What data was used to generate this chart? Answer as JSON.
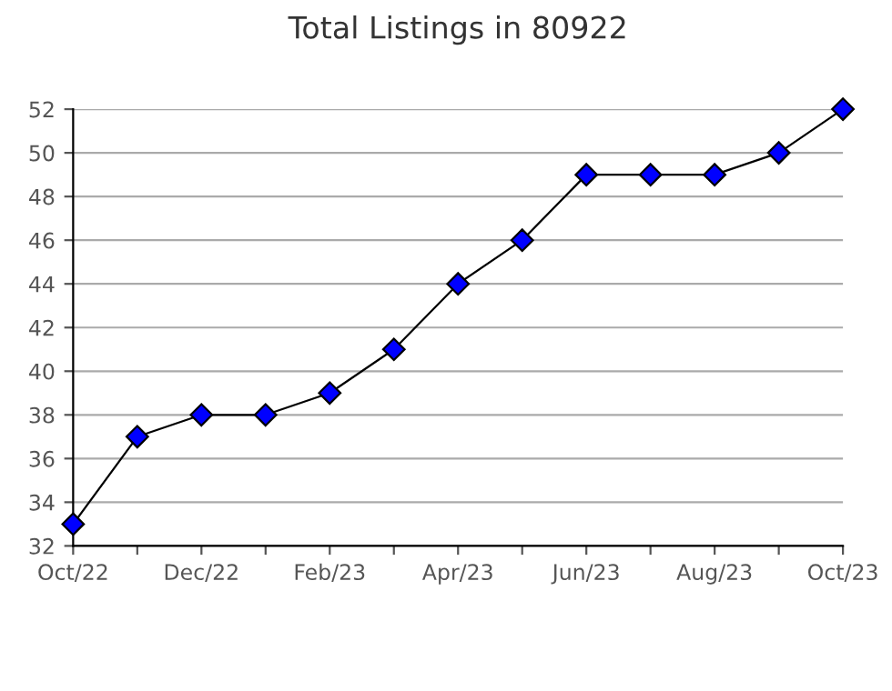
{
  "chart_data": {
    "type": "line",
    "title": "Total Listings in 80922",
    "categories": [
      "Oct/22",
      null,
      "Dec/22",
      null,
      "Feb/23",
      null,
      "Apr/23",
      null,
      "Jun/23",
      null,
      "Aug/23",
      null,
      "Oct/23"
    ],
    "series": [
      {
        "color": "#0000ff",
        "values": [
          33,
          37,
          38,
          38,
          39,
          41,
          44,
          46,
          49,
          49,
          49,
          50,
          52
        ]
      }
    ],
    "ylim": [
      32,
      52
    ],
    "yticks": [
      32,
      34,
      36,
      38,
      40,
      42,
      44,
      46,
      48,
      50,
      52
    ],
    "grid": "y",
    "marker": "diamond",
    "line_style": "solid",
    "legend": false
  }
}
